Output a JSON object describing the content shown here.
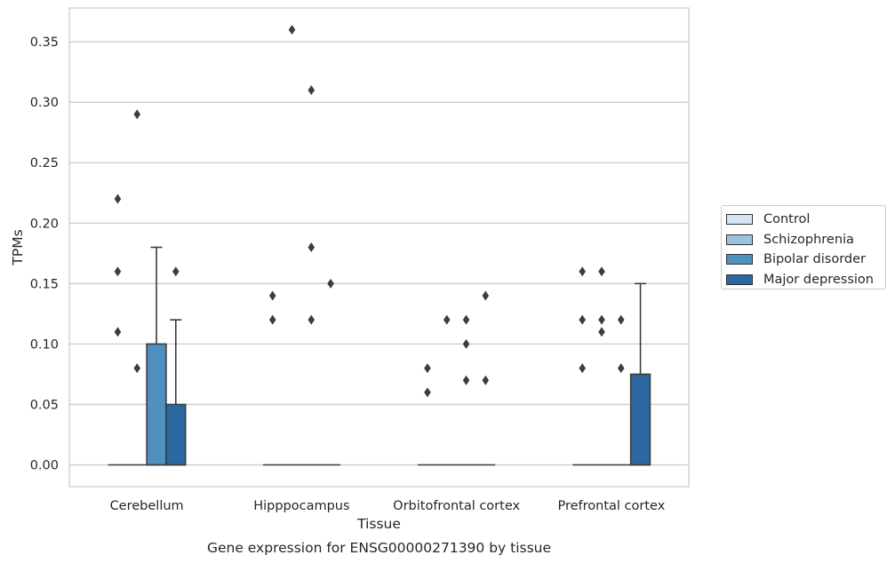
{
  "chart_data": {
    "type": "box",
    "xlabel": "Tissue",
    "ylabel": "TPMs",
    "caption": "Gene expression for ENSG00000271390 by tissue",
    "ylim": [
      -0.018,
      0.378
    ],
    "yticks": [
      "0.00",
      "0.05",
      "0.10",
      "0.15",
      "0.20",
      "0.25",
      "0.30",
      "0.35"
    ],
    "grid": "horizontal",
    "legend_position": "right",
    "categories": [
      "Cerebellum",
      "Hipppocampus",
      "Orbitofrontal cortex",
      "Prefrontal cortex"
    ],
    "series": [
      {
        "name": "Control",
        "color": "#d6e4f1",
        "boxes": [
          {
            "q1": 0,
            "median": 0,
            "q3": 0,
            "whisker_low": 0,
            "whisker_high": 0,
            "outliers": [
              0.11,
              0.16,
              0.22
            ]
          },
          {
            "q1": 0,
            "median": 0,
            "q3": 0,
            "whisker_low": 0,
            "whisker_high": 0,
            "outliers": [
              0.12,
              0.14
            ]
          },
          {
            "q1": 0,
            "median": 0,
            "q3": 0,
            "whisker_low": 0,
            "whisker_high": 0,
            "outliers": [
              0.06,
              0.08
            ]
          },
          {
            "q1": 0,
            "median": 0,
            "q3": 0,
            "whisker_low": 0,
            "whisker_high": 0,
            "outliers": [
              0.08,
              0.12,
              0.16
            ]
          }
        ]
      },
      {
        "name": "Schizophrenia",
        "color": "#9cc3de",
        "boxes": [
          {
            "q1": 0,
            "median": 0,
            "q3": 0,
            "whisker_low": 0,
            "whisker_high": 0,
            "outliers": [
              0.08,
              0.29
            ]
          },
          {
            "q1": 0,
            "median": 0,
            "q3": 0,
            "whisker_low": 0,
            "whisker_high": 0,
            "outliers": [
              0.36
            ]
          },
          {
            "q1": 0,
            "median": 0,
            "q3": 0,
            "whisker_low": 0,
            "whisker_high": 0,
            "outliers": [
              0.12
            ]
          },
          {
            "q1": 0,
            "median": 0,
            "q3": 0,
            "whisker_low": 0,
            "whisker_high": 0,
            "outliers": [
              0.11,
              0.12,
              0.16
            ]
          }
        ]
      },
      {
        "name": "Bipolar disorder",
        "color": "#4f90c1",
        "boxes": [
          {
            "q1": 0,
            "median": 0,
            "q3": 0.1,
            "whisker_low": 0,
            "whisker_high": 0.18,
            "outliers": []
          },
          {
            "q1": 0,
            "median": 0,
            "q3": 0,
            "whisker_low": 0,
            "whisker_high": 0,
            "outliers": [
              0.12,
              0.18,
              0.31
            ]
          },
          {
            "q1": 0,
            "median": 0,
            "q3": 0,
            "whisker_low": 0,
            "whisker_high": 0,
            "outliers": [
              0.07,
              0.1,
              0.12
            ]
          },
          {
            "q1": 0,
            "median": 0,
            "q3": 0,
            "whisker_low": 0,
            "whisker_high": 0,
            "outliers": [
              0.08,
              0.12
            ]
          }
        ]
      },
      {
        "name": "Major depression",
        "color": "#2b67a1",
        "boxes": [
          {
            "q1": 0,
            "median": 0,
            "q3": 0.05,
            "whisker_low": 0,
            "whisker_high": 0.12,
            "outliers": [
              0.16
            ]
          },
          {
            "q1": 0,
            "median": 0,
            "q3": 0,
            "whisker_low": 0,
            "whisker_high": 0,
            "outliers": [
              0.15
            ]
          },
          {
            "q1": 0,
            "median": 0,
            "q3": 0,
            "whisker_low": 0,
            "whisker_high": 0,
            "outliers": [
              0.07,
              0.14
            ]
          },
          {
            "q1": 0,
            "median": 0,
            "q3": 0.075,
            "whisker_low": 0,
            "whisker_high": 0.15,
            "outliers": []
          }
        ]
      }
    ]
  }
}
